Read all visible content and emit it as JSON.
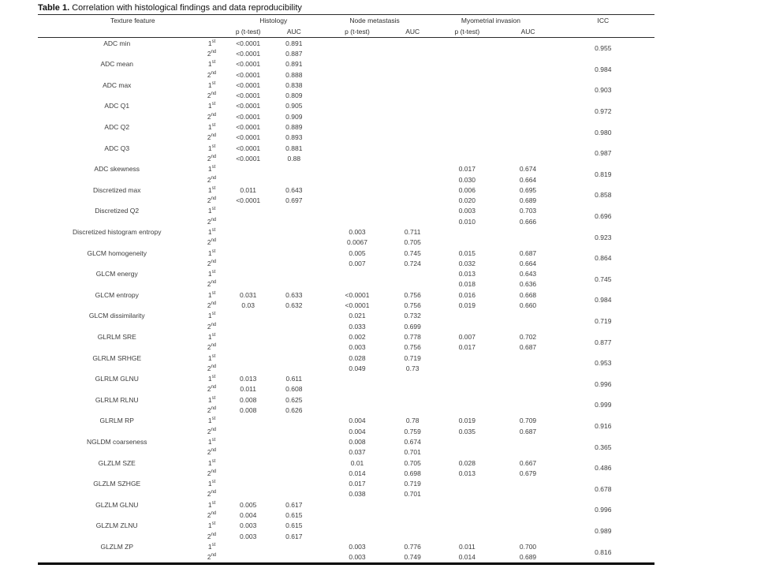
{
  "title": {
    "label": "Table 1.",
    "text": " Correlation with histological findings and data reproducibility"
  },
  "header": {
    "feature": "Texture feature",
    "groups": [
      {
        "label": "Histology"
      },
      {
        "label": "Node metastasis"
      },
      {
        "label": "Myometrial invasion"
      }
    ],
    "sub": {
      "p": "p (t-test)",
      "auc": "AUC"
    },
    "icc": "ICC"
  },
  "features": [
    {
      "name": "ADC min",
      "icc": "0.955",
      "rows": [
        {
          "ord": "1",
          "sup": "st",
          "hist_p": "<0.0001",
          "hist_auc": "0.891",
          "node_p": "",
          "node_auc": "",
          "myo_p": "",
          "myo_auc": ""
        },
        {
          "ord": "2",
          "sup": "nd",
          "hist_p": "<0.0001",
          "hist_auc": "0.887",
          "node_p": "",
          "node_auc": "",
          "myo_p": "",
          "myo_auc": ""
        }
      ]
    },
    {
      "name": "ADC mean",
      "icc": "0.984",
      "rows": [
        {
          "ord": "1",
          "sup": "st",
          "hist_p": "<0.0001",
          "hist_auc": "0.891",
          "node_p": "",
          "node_auc": "",
          "myo_p": "",
          "myo_auc": ""
        },
        {
          "ord": "2",
          "sup": "nd",
          "hist_p": "<0.0001",
          "hist_auc": "0.888",
          "node_p": "",
          "node_auc": "",
          "myo_p": "",
          "myo_auc": ""
        }
      ]
    },
    {
      "name": "ADC max",
      "icc": "0.903",
      "rows": [
        {
          "ord": "1",
          "sup": "st",
          "hist_p": "<0.0001",
          "hist_auc": "0.838",
          "node_p": "",
          "node_auc": "",
          "myo_p": "",
          "myo_auc": ""
        },
        {
          "ord": "2",
          "sup": "nd",
          "hist_p": "<0.0001",
          "hist_auc": "0.809",
          "node_p": "",
          "node_auc": "",
          "myo_p": "",
          "myo_auc": ""
        }
      ]
    },
    {
      "name": "ADC Q1",
      "icc": "0.972",
      "rows": [
        {
          "ord": "1",
          "sup": "st",
          "hist_p": "<0.0001",
          "hist_auc": "0.905",
          "node_p": "",
          "node_auc": "",
          "myo_p": "",
          "myo_auc": ""
        },
        {
          "ord": "2",
          "sup": "nd",
          "hist_p": "<0.0001",
          "hist_auc": "0.909",
          "node_p": "",
          "node_auc": "",
          "myo_p": "",
          "myo_auc": ""
        }
      ]
    },
    {
      "name": "ADC Q2",
      "icc": "0.980",
      "rows": [
        {
          "ord": "1",
          "sup": "st",
          "hist_p": "<0.0001",
          "hist_auc": "0.889",
          "node_p": "",
          "node_auc": "",
          "myo_p": "",
          "myo_auc": ""
        },
        {
          "ord": "2",
          "sup": "nd",
          "hist_p": "<0.0001",
          "hist_auc": "0.893",
          "node_p": "",
          "node_auc": "",
          "myo_p": "",
          "myo_auc": ""
        }
      ]
    },
    {
      "name": "ADC Q3",
      "icc": "0.987",
      "rows": [
        {
          "ord": "1",
          "sup": "st",
          "hist_p": "<0.0001",
          "hist_auc": "0.881",
          "node_p": "",
          "node_auc": "",
          "myo_p": "",
          "myo_auc": ""
        },
        {
          "ord": "2",
          "sup": "nd",
          "hist_p": "<0.0001",
          "hist_auc": "0.88",
          "node_p": "",
          "node_auc": "",
          "myo_p": "",
          "myo_auc": ""
        }
      ]
    },
    {
      "name": "ADC skewness",
      "icc": "0.819",
      "rows": [
        {
          "ord": "1",
          "sup": "st",
          "hist_p": "",
          "hist_auc": "",
          "node_p": "",
          "node_auc": "",
          "myo_p": "0.017",
          "myo_auc": "0.674"
        },
        {
          "ord": "2",
          "sup": "nd",
          "hist_p": "",
          "hist_auc": "",
          "node_p": "",
          "node_auc": "",
          "myo_p": "0.030",
          "myo_auc": "0.664"
        }
      ]
    },
    {
      "name": "Discretized max",
      "icc": "0.858",
      "rows": [
        {
          "ord": "1",
          "sup": "st",
          "hist_p": "0.011",
          "hist_auc": "0.643",
          "node_p": "",
          "node_auc": "",
          "myo_p": "0.006",
          "myo_auc": "0.695"
        },
        {
          "ord": "2",
          "sup": "nd",
          "hist_p": "<0.0001",
          "hist_auc": "0.697",
          "node_p": "",
          "node_auc": "",
          "myo_p": "0.020",
          "myo_auc": "0.689"
        }
      ]
    },
    {
      "name": "Discretized  Q2",
      "icc": "0.696",
      "rows": [
        {
          "ord": "1",
          "sup": "st",
          "hist_p": "",
          "hist_auc": "",
          "node_p": "",
          "node_auc": "",
          "myo_p": "0.003",
          "myo_auc": "0.703"
        },
        {
          "ord": "2",
          "sup": "nd",
          "hist_p": "",
          "hist_auc": "",
          "node_p": "",
          "node_auc": "",
          "myo_p": "0.010",
          "myo_auc": "0.666"
        }
      ]
    },
    {
      "name": "Discretized histogram entropy",
      "icc": "0.923",
      "rows": [
        {
          "ord": "1",
          "sup": "st",
          "hist_p": "",
          "hist_auc": "",
          "node_p": "0.003",
          "node_auc": "0.711",
          "myo_p": "",
          "myo_auc": ""
        },
        {
          "ord": "2",
          "sup": "nd",
          "hist_p": "",
          "hist_auc": "",
          "node_p": "0.0067",
          "node_auc": "0.705",
          "myo_p": "",
          "myo_auc": ""
        }
      ]
    },
    {
      "name": "GLCM homogeneity",
      "icc": "0.864",
      "rows": [
        {
          "ord": "1",
          "sup": "st",
          "hist_p": "",
          "hist_auc": "",
          "node_p": "0.005",
          "node_auc": "0.745",
          "myo_p": "0.015",
          "myo_auc": "0.687"
        },
        {
          "ord": "2",
          "sup": "nd",
          "hist_p": "",
          "hist_auc": "",
          "node_p": "0.007",
          "node_auc": "0.724",
          "myo_p": "0.032",
          "myo_auc": "0.664"
        }
      ]
    },
    {
      "name": "GLCM energy",
      "icc": "0.745",
      "rows": [
        {
          "ord": "1",
          "sup": "st",
          "hist_p": "",
          "hist_auc": "",
          "node_p": "",
          "node_auc": "",
          "myo_p": "0.013",
          "myo_auc": "0.643"
        },
        {
          "ord": "2",
          "sup": "nd",
          "hist_p": "",
          "hist_auc": "",
          "node_p": "",
          "node_auc": "",
          "myo_p": "0.018",
          "myo_auc": "0.636"
        }
      ]
    },
    {
      "name": "GLCM entropy",
      "icc": "0.984",
      "rows": [
        {
          "ord": "1",
          "sup": "st",
          "hist_p": "0.031",
          "hist_auc": "0.633",
          "node_p": "<0.0001",
          "node_auc": "0.756",
          "myo_p": "0.016",
          "myo_auc": "0.668"
        },
        {
          "ord": "2",
          "sup": "nd",
          "hist_p": "0.03",
          "hist_auc": "0.632",
          "node_p": "<0.0001",
          "node_auc": "0.756",
          "myo_p": "0.019",
          "myo_auc": "0.660"
        }
      ]
    },
    {
      "name": "GLCM dissimilarity",
      "icc": "0.719",
      "rows": [
        {
          "ord": "1",
          "sup": "st",
          "hist_p": "",
          "hist_auc": "",
          "node_p": "0.021",
          "node_auc": "0.732",
          "myo_p": "",
          "myo_auc": ""
        },
        {
          "ord": "2",
          "sup": "nd",
          "hist_p": "",
          "hist_auc": "",
          "node_p": "0.033",
          "node_auc": "0.699",
          "myo_p": "",
          "myo_auc": ""
        }
      ]
    },
    {
      "name": "GLRLM SRE",
      "icc": "0.877",
      "rows": [
        {
          "ord": "1",
          "sup": "st",
          "hist_p": "",
          "hist_auc": "",
          "node_p": "0.002",
          "node_auc": "0.778",
          "myo_p": "0.007",
          "myo_auc": "0.702"
        },
        {
          "ord": "2",
          "sup": "nd",
          "hist_p": "",
          "hist_auc": "",
          "node_p": "0.003",
          "node_auc": "0.756",
          "myo_p": "0.017",
          "myo_auc": "0.687"
        }
      ]
    },
    {
      "name": "GLRLM SRHGE",
      "icc": "0.953",
      "rows": [
        {
          "ord": "1",
          "sup": "st",
          "hist_p": "",
          "hist_auc": "",
          "node_p": "0.028",
          "node_auc": "0.719",
          "myo_p": "",
          "myo_auc": ""
        },
        {
          "ord": "2",
          "sup": "nd",
          "hist_p": "",
          "hist_auc": "",
          "node_p": "0.049",
          "node_auc": "0.73",
          "myo_p": "",
          "myo_auc": ""
        }
      ]
    },
    {
      "name": "GLRLM   GLNU",
      "icc": "0.996",
      "rows": [
        {
          "ord": "1",
          "sup": "st",
          "hist_p": "0.013",
          "hist_auc": "0.611",
          "node_p": "",
          "node_auc": "",
          "myo_p": "",
          "myo_auc": ""
        },
        {
          "ord": "2",
          "sup": "nd",
          "hist_p": "0.011",
          "hist_auc": "0.608",
          "node_p": "",
          "node_auc": "",
          "myo_p": "",
          "myo_auc": ""
        }
      ]
    },
    {
      "name": "GLRLM   RLNU",
      "icc": "0.999",
      "rows": [
        {
          "ord": "1",
          "sup": "st",
          "hist_p": "0.008",
          "hist_auc": "0.625",
          "node_p": "",
          "node_auc": "",
          "myo_p": "",
          "myo_auc": ""
        },
        {
          "ord": "2",
          "sup": "nd",
          "hist_p": "0.008",
          "hist_auc": "0.626",
          "node_p": "",
          "node_auc": "",
          "myo_p": "",
          "myo_auc": ""
        }
      ]
    },
    {
      "name": "GLRLM   RP",
      "icc": "0.916",
      "rows": [
        {
          "ord": "1",
          "sup": "st",
          "hist_p": "",
          "hist_auc": "",
          "node_p": "0.004",
          "node_auc": "0.78",
          "myo_p": "0.019",
          "myo_auc": "0.709"
        },
        {
          "ord": "2",
          "sup": "nd",
          "hist_p": "",
          "hist_auc": "",
          "node_p": "0.004",
          "node_auc": "0.759",
          "myo_p": "0.035",
          "myo_auc": "0.687"
        }
      ]
    },
    {
      "name": "NGLDM coarseness",
      "icc": "0.365",
      "rows": [
        {
          "ord": "1",
          "sup": "st",
          "hist_p": "",
          "hist_auc": "",
          "node_p": "0.008",
          "node_auc": "0.674",
          "myo_p": "",
          "myo_auc": ""
        },
        {
          "ord": "2",
          "sup": "nd",
          "hist_p": "",
          "hist_auc": "",
          "node_p": "0.037",
          "node_auc": "0.701",
          "myo_p": "",
          "myo_auc": ""
        }
      ]
    },
    {
      "name": "GLZLM SZE",
      "icc": "0.486",
      "rows": [
        {
          "ord": "1",
          "sup": "st",
          "hist_p": "",
          "hist_auc": "",
          "node_p": "0.01",
          "node_auc": "0.705",
          "myo_p": "0.028",
          "myo_auc": "0.667"
        },
        {
          "ord": "2",
          "sup": "nd",
          "hist_p": "",
          "hist_auc": "",
          "node_p": "0.014",
          "node_auc": "0.698",
          "myo_p": "0.013",
          "myo_auc": "0.679"
        }
      ]
    },
    {
      "name": "GLZLM SZHGE",
      "icc": "0.678",
      "rows": [
        {
          "ord": "1",
          "sup": "st",
          "hist_p": "",
          "hist_auc": "",
          "node_p": "0.017",
          "node_auc": "0.719",
          "myo_p": "",
          "myo_auc": ""
        },
        {
          "ord": "2",
          "sup": "nd",
          "hist_p": "",
          "hist_auc": "",
          "node_p": "0.038",
          "node_auc": "0.701",
          "myo_p": "",
          "myo_auc": ""
        }
      ]
    },
    {
      "name": "GLZLM GLNU",
      "icc": "0.996",
      "rows": [
        {
          "ord": "1",
          "sup": "st",
          "hist_p": "0.005",
          "hist_auc": "0.617",
          "node_p": "",
          "node_auc": "",
          "myo_p": "",
          "myo_auc": ""
        },
        {
          "ord": "2",
          "sup": "nd",
          "hist_p": "0.004",
          "hist_auc": "0.615",
          "node_p": "",
          "node_auc": "",
          "myo_p": "",
          "myo_auc": ""
        }
      ]
    },
    {
      "name": "GLZLM ZLNU",
      "icc": "0.989",
      "rows": [
        {
          "ord": "1",
          "sup": "st",
          "hist_p": "0.003",
          "hist_auc": "0.615",
          "node_p": "",
          "node_auc": "",
          "myo_p": "",
          "myo_auc": ""
        },
        {
          "ord": "2",
          "sup": "nd",
          "hist_p": "0.003",
          "hist_auc": "0.617",
          "node_p": "",
          "node_auc": "",
          "myo_p": "",
          "myo_auc": ""
        }
      ]
    },
    {
      "name": "GLZLM ZP",
      "icc": "0.816",
      "rows": [
        {
          "ord": "1",
          "sup": "st",
          "hist_p": "",
          "hist_auc": "",
          "node_p": "0.003",
          "node_auc": "0.776",
          "myo_p": "0.011",
          "myo_auc": "0.700"
        },
        {
          "ord": "2",
          "sup": "nd",
          "hist_p": "",
          "hist_auc": "",
          "node_p": "0.003",
          "node_auc": "0.749",
          "myo_p": "0.014",
          "myo_auc": "0.689"
        }
      ]
    }
  ]
}
